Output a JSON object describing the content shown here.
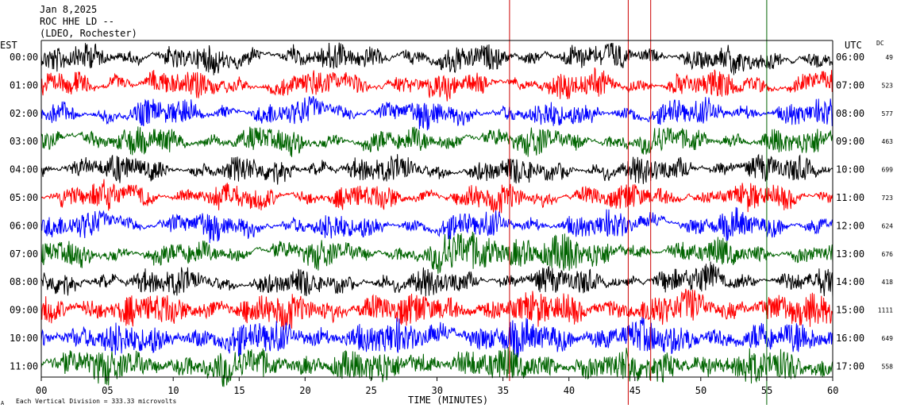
{
  "header": {
    "date": "Jan 8,2025",
    "station": "ROC HHE LD --",
    "network": "(LDEO, Rochester)"
  },
  "left_axis_label": "EST",
  "right_axis_label": "UTC",
  "dc_label": "DC",
  "x_axis_title": "TIME (MINUTES)",
  "footnote": "Each Vertical Division =  333.33 microvolts",
  "corner_mark": "A",
  "colors": {
    "trace_cycle": [
      "#000000",
      "#ff0000",
      "#0000ff",
      "#006400"
    ],
    "spike": "#cc0000",
    "frame": "#000000"
  },
  "chart_data": {
    "type": "line",
    "description_units": "seismic helicorder, 60 min per line, 12 lines",
    "x_ticks": [
      "00",
      "05",
      "10",
      "15",
      "20",
      "25",
      "30",
      "35",
      "40",
      "45",
      "50",
      "55",
      "60"
    ],
    "xlim": [
      0,
      60
    ],
    "rows": [
      {
        "est": "00:00",
        "utc": "06:00",
        "dc": "49"
      },
      {
        "est": "01:00",
        "utc": "07:00",
        "dc": "523"
      },
      {
        "est": "02:00",
        "utc": "08:00",
        "dc": "577"
      },
      {
        "est": "03:00",
        "utc": "09:00",
        "dc": "463"
      },
      {
        "est": "04:00",
        "utc": "10:00",
        "dc": "699"
      },
      {
        "est": "05:00",
        "utc": "11:00",
        "dc": "723"
      },
      {
        "est": "06:00",
        "utc": "12:00",
        "dc": "624"
      },
      {
        "est": "07:00",
        "utc": "13:00",
        "dc": "676"
      },
      {
        "est": "08:00",
        "utc": "14:00",
        "dc": "418"
      },
      {
        "est": "09:00",
        "utc": "15:00",
        "dc": "1111"
      },
      {
        "est": "10:00",
        "utc": "16:00",
        "dc": "649"
      },
      {
        "est": "11:00",
        "utc": "17:00",
        "dc": "558"
      }
    ],
    "spikes_minutes": [
      35.5,
      44.5,
      46.2,
      55.0
    ]
  }
}
